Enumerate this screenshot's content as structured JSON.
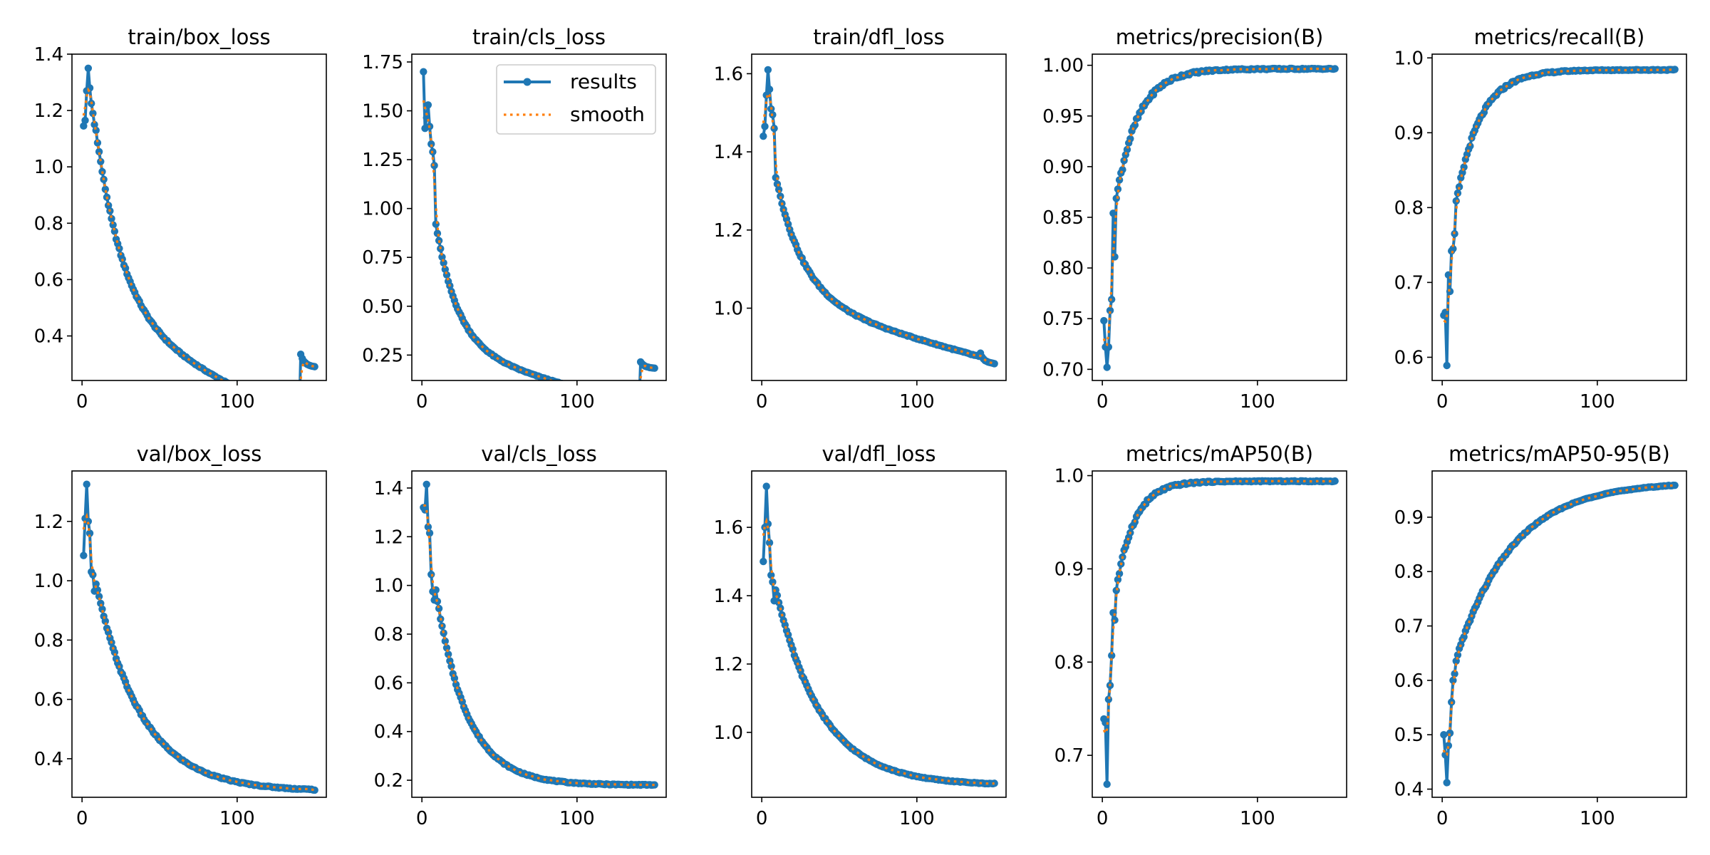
{
  "figure": {
    "legend": {
      "results_label": "results",
      "smooth_label": "smooth"
    },
    "colors": {
      "results": "#1f77b4",
      "smooth": "#ff7f0e",
      "axes": "#000000"
    }
  },
  "chart_data": [
    {
      "type": "line",
      "title": "train/box_loss",
      "xlabel": "",
      "ylabel": "",
      "grid": false,
      "xlim": [
        -6.5,
        157.5
      ],
      "ylim": [
        0.242,
        1.4
      ],
      "xticks": [
        0,
        100
      ],
      "xtick_labels": [
        "0",
        "100"
      ],
      "yticks": [
        0.4,
        0.6,
        0.8,
        1.0,
        1.2,
        1.4
      ],
      "ytick_labels": [
        "0.4",
        "0.6",
        "0.8",
        "1.0",
        "1.2",
        "1.4"
      ],
      "shape": {
        "kind": "decay",
        "start": [
          1.145,
          1.165,
          1.27,
          1.35,
          1.28,
          1.225,
          1.19,
          1.15
        ],
        "a": 0.47,
        "b": 1.12,
        "k": 0.055,
        "lin": -0.0026,
        "drop_at": 140,
        "drop_to": [
          0.335,
          0.32,
          0.31,
          0.305,
          0.3,
          0.297,
          0.295,
          0.293,
          0.292,
          0.291
        ],
        "noise": 0.006
      }
    },
    {
      "type": "line",
      "title": "train/cls_loss",
      "legend": "upper-right",
      "xlim": [
        -6.5,
        157.5
      ],
      "ylim": [
        0.12,
        1.79
      ],
      "xticks": [
        0,
        100
      ],
      "xtick_labels": [
        "0",
        "100"
      ],
      "yticks": [
        0.25,
        0.5,
        0.75,
        1.0,
        1.25,
        1.5,
        1.75
      ],
      "ytick_labels": [
        "0.25",
        "0.50",
        "0.75",
        "1.00",
        "1.25",
        "1.50",
        "1.75"
      ],
      "shape": {
        "kind": "decay",
        "start": [
          1.7,
          1.41,
          1.465,
          1.53,
          1.42,
          1.33,
          1.29,
          1.22
        ],
        "a": 0.3,
        "b": 1.2,
        "k": 0.07,
        "lin": -0.0022,
        "drop_at": 140,
        "drop_to": [
          0.215,
          0.205,
          0.198,
          0.193,
          0.19,
          0.188,
          0.186,
          0.185,
          0.184,
          0.183
        ],
        "noise": 0.006
      }
    },
    {
      "type": "line",
      "title": "train/dfl_loss",
      "xlim": [
        -6.5,
        157.5
      ],
      "ylim": [
        0.815,
        1.65
      ],
      "xticks": [
        0,
        100
      ],
      "xtick_labels": [
        "0",
        "100"
      ],
      "yticks": [
        1.0,
        1.2,
        1.4,
        1.6
      ],
      "ytick_labels": [
        "1.0",
        "1.2",
        "1.4",
        "1.6"
      ],
      "shape": {
        "kind": "decay",
        "start": [
          1.44,
          1.465,
          1.545,
          1.61,
          1.56,
          1.51,
          1.495,
          1.46
        ],
        "a": 1.03,
        "b": 0.52,
        "k": 0.055,
        "lin": -0.0011,
        "drop_at": 140,
        "drop_to": [
          0.885,
          0.875,
          0.87,
          0.866,
          0.864,
          0.862,
          0.861,
          0.86,
          0.859,
          0.858
        ],
        "noise": 0.004
      }
    },
    {
      "type": "line",
      "title": "metrics/precision(B)",
      "xlim": [
        -6.5,
        157.5
      ],
      "ylim": [
        0.689,
        1.011
      ],
      "xticks": [
        0,
        100
      ],
      "xtick_labels": [
        "0",
        "100"
      ],
      "yticks": [
        0.7,
        0.75,
        0.8,
        0.85,
        0.9,
        0.95,
        1.0
      ],
      "ytick_labels": [
        "0.70",
        "0.75",
        "0.80",
        "0.85",
        "0.90",
        "0.95",
        "1.00"
      ],
      "shape": {
        "kind": "rise",
        "start": [
          0.748,
          0.722,
          0.702,
          0.722,
          0.758,
          0.769,
          0.854,
          0.811
        ],
        "a": 0.9965,
        "b": 0.24,
        "k": 0.07,
        "drop_at": 0,
        "noise": 0.004
      }
    },
    {
      "type": "line",
      "title": "metrics/recall(B)",
      "xlim": [
        -6.5,
        157.5
      ],
      "ylim": [
        0.569,
        1.005
      ],
      "xticks": [
        0,
        100
      ],
      "xtick_labels": [
        "0",
        "100"
      ],
      "yticks": [
        0.6,
        0.7,
        0.8,
        0.9,
        1.0
      ],
      "ytick_labels": [
        "0.6",
        "0.7",
        "0.8",
        "0.9",
        "1.0"
      ],
      "shape": {
        "kind": "rise",
        "start": [
          0.656,
          0.66,
          0.589,
          0.71,
          0.688,
          0.742,
          0.745,
          0.765
        ],
        "a": 0.984,
        "b": 0.32,
        "k": 0.065,
        "drop_at": 0,
        "noise": 0.004
      }
    },
    {
      "type": "line",
      "title": "val/box_loss",
      "xlim": [
        -6.5,
        157.5
      ],
      "ylim": [
        0.27,
        1.37
      ],
      "xticks": [
        0,
        100
      ],
      "xtick_labels": [
        "0",
        "100"
      ],
      "yticks": [
        0.4,
        0.6,
        0.8,
        1.0,
        1.2
      ],
      "ytick_labels": [
        "0.4",
        "0.6",
        "0.8",
        "1.0",
        "1.2"
      ],
      "shape": {
        "kind": "decay",
        "start": [
          1.085,
          1.21,
          1.325,
          1.2,
          1.16,
          1.03,
          1.02,
          0.965
        ],
        "a": 0.29,
        "b": 0.95,
        "k": 0.034,
        "lin": 0,
        "drop_at": 0,
        "noise": 0.006
      }
    },
    {
      "type": "line",
      "title": "val/cls_loss",
      "xlim": [
        -6.5,
        157.5
      ],
      "ylim": [
        0.13,
        1.47
      ],
      "xticks": [
        0,
        100
      ],
      "xtick_labels": [
        "0",
        "100"
      ],
      "yticks": [
        0.2,
        0.4,
        0.6,
        0.8,
        1.0,
        1.2,
        1.4
      ],
      "ytick_labels": [
        "0.2",
        "0.4",
        "0.6",
        "0.8",
        "1.0",
        "1.2",
        "1.4"
      ],
      "shape": {
        "kind": "decay",
        "start": [
          1.32,
          1.31,
          1.415,
          1.24,
          1.215,
          1.045,
          0.975,
          0.94
        ],
        "a": 0.18,
        "b": 1.25,
        "k": 0.05,
        "lin": 0,
        "drop_at": 0,
        "noise": 0.006
      }
    },
    {
      "type": "line",
      "title": "val/dfl_loss",
      "xlim": [
        -6.5,
        157.5
      ],
      "ylim": [
        0.81,
        1.765
      ],
      "xticks": [
        0,
        100
      ],
      "xtick_labels": [
        "0",
        "100"
      ],
      "yticks": [
        1.0,
        1.2,
        1.4,
        1.6
      ],
      "ytick_labels": [
        "1.0",
        "1.2",
        "1.4",
        "1.6"
      ],
      "shape": {
        "kind": "decay",
        "start": [
          1.5,
          1.6,
          1.72,
          1.61,
          1.555,
          1.46,
          1.44,
          1.385
        ],
        "a": 0.845,
        "b": 0.78,
        "k": 0.034,
        "lin": 0,
        "drop_at": 0,
        "noise": 0.004
      }
    },
    {
      "type": "line",
      "title": "metrics/mAP50(B)",
      "xlim": [
        -6.5,
        157.5
      ],
      "ylim": [
        0.655,
        1.005
      ],
      "xticks": [
        0,
        100
      ],
      "xtick_labels": [
        "0",
        "100"
      ],
      "yticks": [
        0.7,
        0.8,
        0.9,
        1.0
      ],
      "ytick_labels": [
        "0.7",
        "0.8",
        "0.9",
        "1.0"
      ],
      "shape": {
        "kind": "rise",
        "start": [
          0.739,
          0.735,
          0.669,
          0.76,
          0.775,
          0.807,
          0.853,
          0.845
        ],
        "a": 0.994,
        "b": 0.25,
        "k": 0.085,
        "drop_at": 0,
        "noise": 0.003
      }
    },
    {
      "type": "line",
      "title": "metrics/mAP50-95(B)",
      "xlim": [
        -6.5,
        157.5
      ],
      "ylim": [
        0.385,
        0.985
      ],
      "xticks": [
        0,
        100
      ],
      "xtick_labels": [
        "0",
        "100"
      ],
      "yticks": [
        0.4,
        0.5,
        0.6,
        0.7,
        0.8,
        0.9
      ],
      "ytick_labels": [
        "0.4",
        "0.5",
        "0.6",
        "0.7",
        "0.8",
        "0.9"
      ],
      "shape": {
        "kind": "rise",
        "start": [
          0.5,
          0.463,
          0.412,
          0.48,
          0.503,
          0.56,
          0.6,
          0.612
        ],
        "a": 0.965,
        "b": 0.42,
        "k": 0.028,
        "drop_at": 0,
        "noise": 0.004
      }
    }
  ]
}
